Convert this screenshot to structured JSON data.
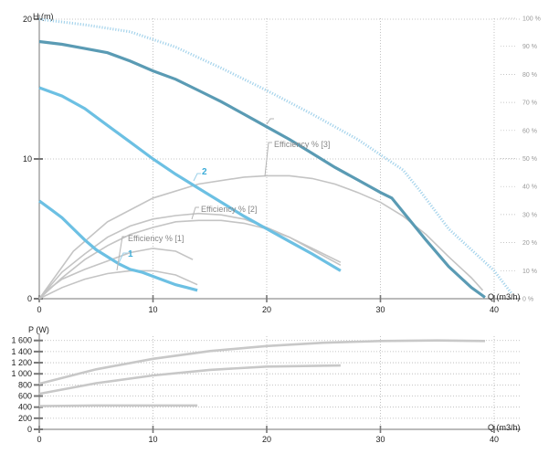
{
  "colors": {
    "head_dark": "#5a9bb4",
    "head_blue": "#6cc0e3",
    "efficiency": "#c4c4c4",
    "efficiency_top_dotted": "#a6d4ec",
    "grid": "#b4b4b4",
    "power": "#c8c8c8"
  },
  "chart_data": [
    {
      "type": "line",
      "ylabel": "H (m)",
      "xlabel": "Q (m3/h)",
      "xlim": [
        0,
        42
      ],
      "ylim": [
        0,
        20
      ],
      "x_ticks": [
        0,
        10,
        20,
        30,
        40
      ],
      "y_ticks": [
        0,
        10,
        20
      ],
      "y2_ticks": [
        "0 %",
        "10 %",
        "20 %",
        "30 %",
        "40 %",
        "50 %",
        "60 %",
        "70 %",
        "80 %",
        "90 %",
        "100 %"
      ],
      "grid": true,
      "series": [
        {
          "role": "head",
          "style": "dark",
          "x": [
            0,
            2,
            4,
            6,
            8,
            10,
            12,
            14,
            16,
            18,
            20,
            22,
            24,
            26,
            28,
            30,
            31,
            32,
            34,
            36,
            38,
            39.2
          ],
          "values": [
            18.4,
            18.2,
            17.9,
            17.6,
            17.0,
            16.3,
            15.7,
            14.9,
            14.1,
            13.2,
            12.3,
            11.4,
            10.4,
            9.4,
            8.5,
            7.6,
            7.2,
            6.2,
            4.2,
            2.3,
            0.8,
            0.1
          ]
        },
        {
          "role": "head",
          "style": "top-dotted",
          "x": [
            0,
            4,
            8,
            12,
            16,
            20,
            24,
            28,
            32,
            33.5,
            36,
            38,
            40,
            41.5
          ],
          "values": [
            20.0,
            19.6,
            19.1,
            18.0,
            16.5,
            14.9,
            13.2,
            11.4,
            9.2,
            7.7,
            5.0,
            3.5,
            2.0,
            0.4
          ]
        },
        {
          "role": "head",
          "label": "2",
          "x": [
            0,
            2,
            4,
            6,
            8,
            10,
            12,
            14,
            16,
            18,
            20,
            22,
            24,
            26.5
          ],
          "values": [
            15.1,
            14.5,
            13.6,
            12.4,
            11.2,
            10.0,
            8.9,
            7.9,
            6.9,
            5.9,
            5.0,
            4.1,
            3.2,
            2.0
          ]
        },
        {
          "role": "head",
          "label": "1",
          "x": [
            0,
            1,
            2,
            3,
            4,
            5,
            6,
            7,
            8,
            9,
            10,
            11,
            12,
            13,
            13.9
          ],
          "values": [
            7.0,
            6.4,
            5.8,
            5.0,
            4.2,
            3.5,
            3.0,
            2.5,
            2.1,
            1.9,
            1.6,
            1.3,
            1.0,
            0.8,
            0.6
          ]
        },
        {
          "role": "efficiency",
          "label": "Efficiency % [3]",
          "x": [
            0,
            3,
            6,
            10,
            14,
            18,
            20,
            22,
            24,
            26,
            28,
            30,
            32,
            34,
            36,
            38,
            39
          ],
          "values": [
            0,
            3.4,
            5.5,
            7.2,
            8.2,
            8.7,
            8.8,
            8.8,
            8.6,
            8.2,
            7.6,
            6.9,
            5.9,
            4.6,
            3.0,
            1.5,
            0.6
          ]
        },
        {
          "role": "efficiency",
          "label": "Efficiency % [2]",
          "x": [
            0,
            2,
            4,
            6,
            8,
            10,
            12,
            14,
            16,
            18,
            20,
            22,
            24,
            26.5
          ],
          "values": [
            0,
            1.9,
            3.2,
            4.4,
            5.2,
            5.7,
            5.95,
            6.1,
            6.0,
            5.7,
            5.1,
            4.4,
            3.5,
            2.4
          ]
        },
        {
          "role": "efficiency",
          "label": "Efficiency % [1]",
          "x": [
            0,
            1,
            2,
            4,
            6,
            8,
            10,
            12,
            13.5
          ],
          "values": [
            0,
            0.8,
            1.4,
            2.1,
            2.7,
            3.3,
            3.6,
            3.4,
            2.8
          ]
        },
        {
          "role": "efficiency",
          "x": [
            0,
            2,
            4,
            6,
            8,
            10,
            12,
            13.9
          ],
          "values": [
            0,
            0.8,
            1.4,
            1.8,
            2.0,
            2.0,
            1.7,
            1.0
          ]
        },
        {
          "role": "efficiency",
          "x": [
            0,
            2,
            4,
            6,
            8,
            10,
            12,
            14,
            16,
            18,
            20,
            22,
            24,
            26.5
          ],
          "values": [
            0,
            1.5,
            2.8,
            3.8,
            4.6,
            5.1,
            5.5,
            5.6,
            5.6,
            5.4,
            5.0,
            4.4,
            3.6,
            2.6
          ]
        }
      ]
    },
    {
      "type": "line",
      "ylabel": "P (W)",
      "xlabel": "Q (m3/h)",
      "xlim": [
        0,
        42
      ],
      "ylim": [
        0,
        1700
      ],
      "x_ticks": [
        0,
        10,
        20,
        30,
        40
      ],
      "y_tick_values": [
        0,
        200,
        400,
        600,
        800,
        1000,
        1200,
        1400,
        1600
      ],
      "y_tick_labels": [
        "0",
        "200",
        "400",
        "600",
        "800",
        "1 000",
        "1 200",
        "1 400",
        "1 600"
      ],
      "grid": true,
      "series": [
        {
          "role": "power",
          "x": [
            0,
            5,
            10,
            15,
            20,
            25,
            30,
            35,
            39.2
          ],
          "values": [
            820,
            1080,
            1270,
            1410,
            1500,
            1560,
            1590,
            1600,
            1590
          ]
        },
        {
          "role": "power",
          "x": [
            0,
            5,
            10,
            15,
            20,
            26.5
          ],
          "values": [
            640,
            830,
            970,
            1070,
            1130,
            1150
          ]
        },
        {
          "role": "power",
          "x": [
            0,
            5,
            10,
            13.9
          ],
          "values": [
            420,
            430,
            430,
            430
          ]
        }
      ]
    }
  ]
}
